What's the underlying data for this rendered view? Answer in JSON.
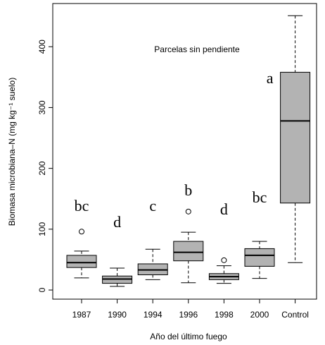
{
  "chart_data": {
    "type": "boxplot",
    "title": "Parcelas sin pendiente",
    "xlabel": "Año del último fuego",
    "ylabel": "Biomasa microbiana–N (mg kg⁻¹ suelo)",
    "categories": [
      "1987",
      "1990",
      "1994",
      "1996",
      "1998",
      "2000",
      "Control"
    ],
    "boxes": [
      {
        "min": 20,
        "q1": 37,
        "median": 45,
        "q3": 57,
        "max": 64,
        "outliers": [
          96
        ]
      },
      {
        "min": 6,
        "q1": 11,
        "median": 18,
        "q3": 23,
        "max": 36
      },
      {
        "min": 17,
        "q1": 25,
        "median": 33,
        "q3": 43,
        "max": 67
      },
      {
        "min": 12,
        "q1": 48,
        "median": 62,
        "q3": 80,
        "max": 95,
        "outliers": [
          129
        ]
      },
      {
        "min": 11,
        "q1": 17,
        "median": 22,
        "q3": 27,
        "max": 40,
        "outliers": [
          49
        ]
      },
      {
        "min": 19,
        "q1": 39,
        "median": 57,
        "q3": 68,
        "max": 80
      },
      {
        "min": 45,
        "q1": 143,
        "median": 278,
        "q3": 358,
        "max": 451
      }
    ],
    "annotations": [
      "bc",
      "d",
      "c",
      "b",
      "d",
      "bc",
      "a"
    ],
    "color": "#b3b3b3",
    "ylim": [
      -15,
      471
    ],
    "yticks": [
      0,
      100,
      200,
      300,
      400
    ]
  }
}
